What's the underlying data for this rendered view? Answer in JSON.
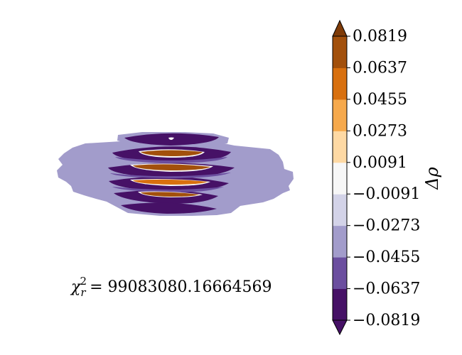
{
  "chart_data": {
    "type": "heatmap",
    "colorbar": {
      "label": "Δρ",
      "ticks": [
        "0.0819",
        "0.0637",
        "0.0455",
        "0.0273",
        "0.0091",
        "−0.0091",
        "−0.0273",
        "−0.0455",
        "−0.0637",
        "−0.0819"
      ],
      "levels": [
        -0.0819,
        -0.0637,
        -0.0455,
        -0.0273,
        -0.0091,
        0.0091,
        0.0273,
        0.0455,
        0.0637,
        0.0819
      ],
      "extend": "both",
      "colors": [
        "#461166",
        "#6b4e9f",
        "#a29ccb",
        "#d3d3e8",
        "#f7f7f7",
        "#fed9a4",
        "#f6a94c",
        "#d8700f",
        "#a2500c",
        "#7f3b08"
      ]
    },
    "annotation": {
      "chi_symbol": "χ",
      "chi_sup": "2",
      "chi_sub": "r",
      "chi_value": "= 99083080.16664569"
    }
  }
}
